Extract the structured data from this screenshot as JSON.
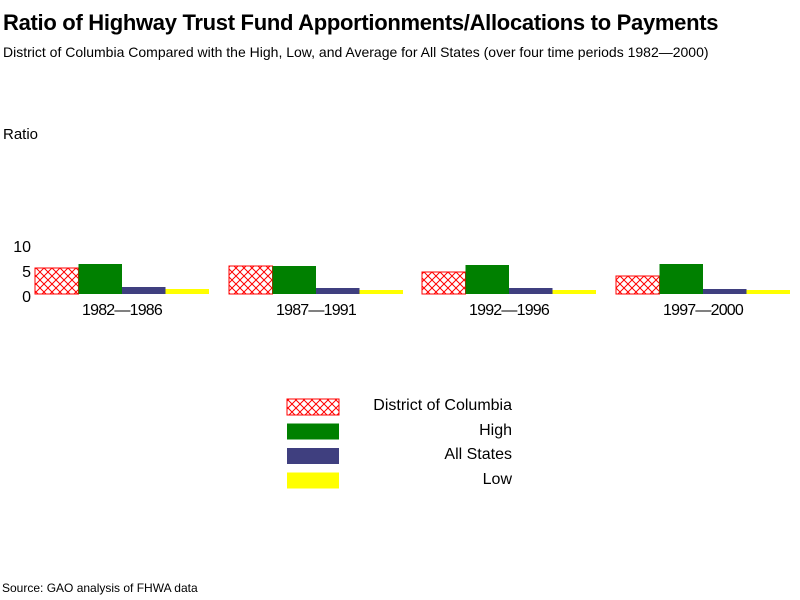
{
  "chart_data": {
    "type": "bar",
    "title": "Ratio of Highway Trust Fund Apportionments/Allocations to Payments",
    "subtitle": "District of Columbia Compared with the High, Low, and Average for All States (over four time periods 1982—2000)",
    "xlabel": "",
    "ylabel": "Ratio",
    "ylim": [
      0,
      10
    ],
    "yticks": [
      "0",
      "5",
      "10"
    ],
    "categories": [
      "1982—1986",
      "1987—1991",
      "1992—1996",
      "1997—2000"
    ],
    "series": [
      {
        "name": "District of Columbia",
        "color": "#ff0000",
        "pattern": "crosshatch",
        "values": [
          5.2,
          5.6,
          4.4,
          3.6
        ]
      },
      {
        "name": "High",
        "color": "#008000",
        "values": [
          6.0,
          5.6,
          5.8,
          6.0
        ]
      },
      {
        "name": "All States",
        "color": "#3f3f7f",
        "values": [
          1.4,
          1.2,
          1.2,
          1.0
        ]
      },
      {
        "name": "Low",
        "color": "#ffff00",
        "values": [
          1.0,
          0.8,
          0.8,
          0.8
        ]
      }
    ],
    "legend_position": "bottom-center",
    "grid": false
  },
  "source": "Source: GAO analysis of FHWA data"
}
